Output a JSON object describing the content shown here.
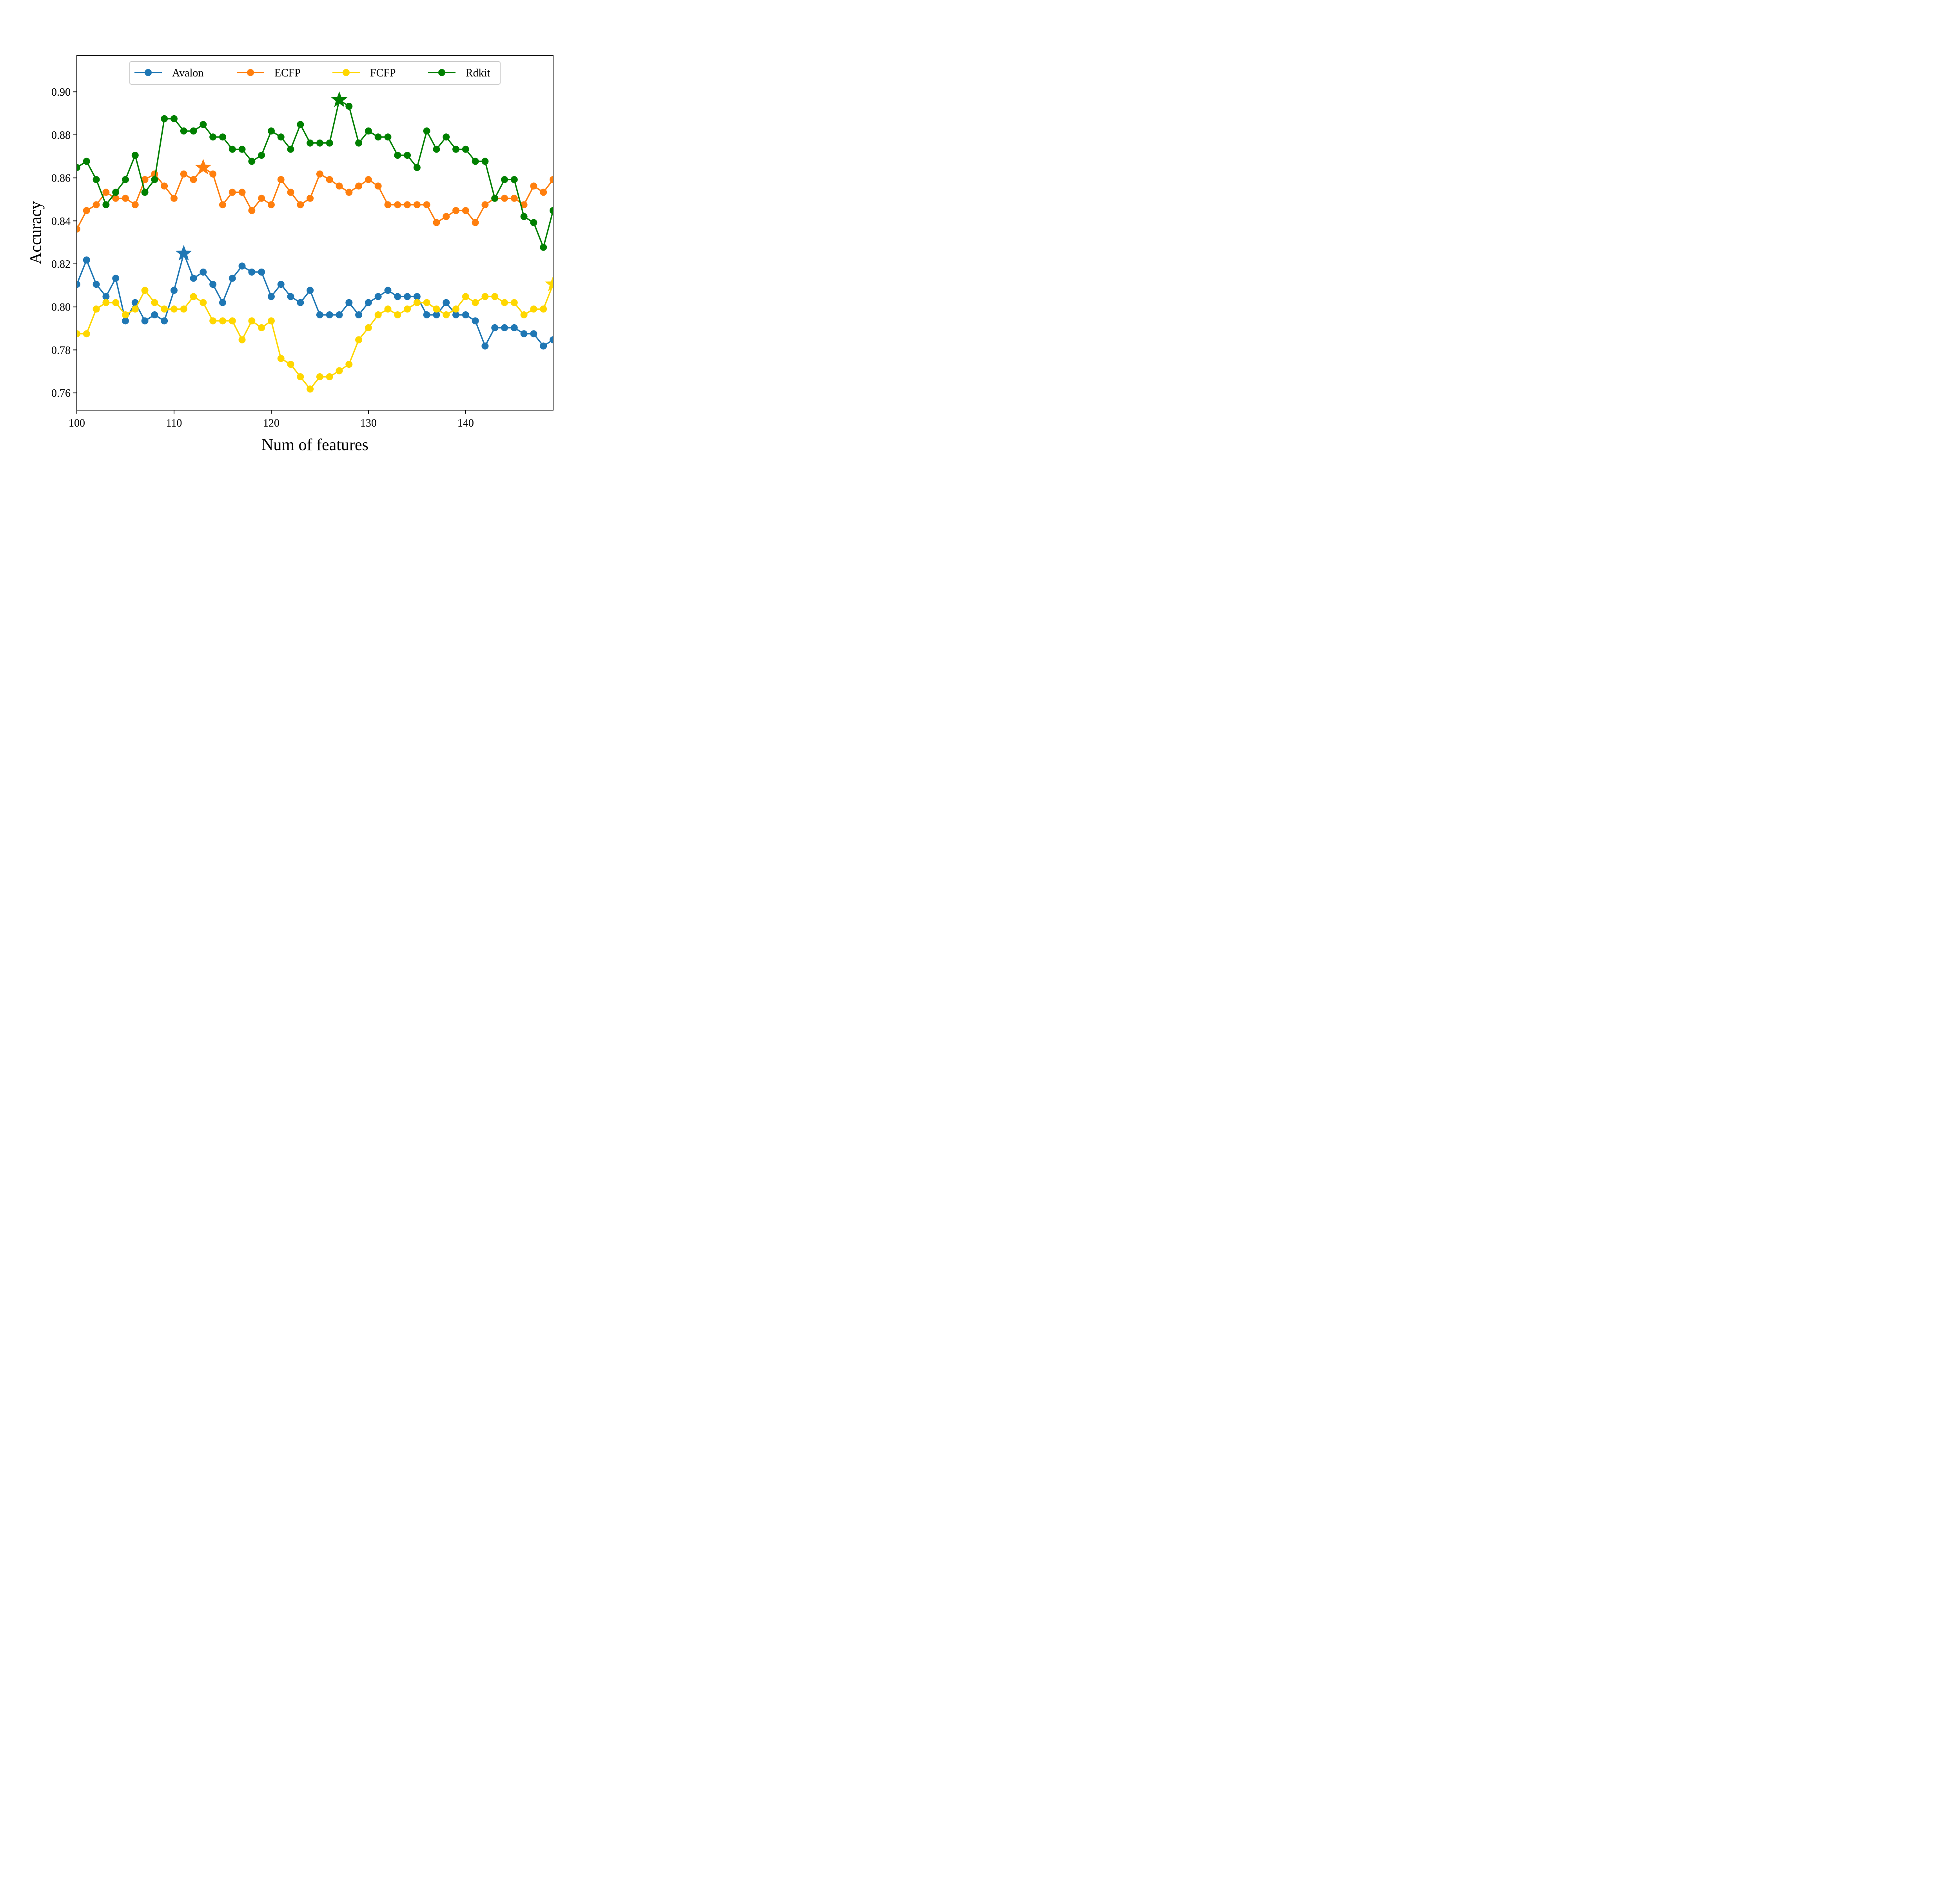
{
  "chart_data": {
    "type": "line",
    "title": "",
    "xlabel": "Num of features",
    "ylabel": "Accuracy",
    "xlim": [
      100,
      149
    ],
    "ylim": [
      0.752,
      0.917
    ],
    "xticks": [
      100,
      110,
      120,
      130,
      140
    ],
    "xtick_labels": [
      "100",
      "110",
      "120",
      "130",
      "140"
    ],
    "yticks": [
      0.76,
      0.78,
      0.8,
      0.82,
      0.84,
      0.86,
      0.88,
      0.9
    ],
    "ytick_labels": [
      "0.76",
      "0.78",
      "0.80",
      "0.82",
      "0.84",
      "0.86",
      "0.88",
      "0.90"
    ],
    "grid": false,
    "legend_position": "top-center",
    "x": [
      100,
      101,
      102,
      103,
      104,
      105,
      106,
      107,
      108,
      109,
      110,
      111,
      112,
      113,
      114,
      115,
      116,
      117,
      118,
      119,
      120,
      121,
      122,
      123,
      124,
      125,
      126,
      127,
      128,
      129,
      130,
      131,
      132,
      133,
      134,
      135,
      136,
      137,
      138,
      139,
      140,
      141,
      142,
      143,
      144,
      145,
      146,
      147,
      148,
      149
    ],
    "series": [
      {
        "name": "Avalon",
        "color": "#1f77b4",
        "values": [
          0.8105,
          0.8218,
          0.8105,
          0.8048,
          0.8133,
          0.7935,
          0.802,
          0.7935,
          0.7963,
          0.7935,
          0.8077,
          0.8248,
          0.8133,
          0.8162,
          0.8105,
          0.802,
          0.8133,
          0.819,
          0.8162,
          0.8162,
          0.8048,
          0.8105,
          0.8048,
          0.802,
          0.8077,
          0.7963,
          0.7963,
          0.7963,
          0.802,
          0.7963,
          0.802,
          0.8048,
          0.8077,
          0.8048,
          0.8048,
          0.8048,
          0.7963,
          0.7963,
          0.802,
          0.7963,
          0.7963,
          0.7935,
          0.7818,
          0.7903,
          0.7903,
          0.7903,
          0.7875,
          0.7875,
          0.7818,
          0.7847
        ],
        "best": {
          "x": 111,
          "y": 0.8248
        }
      },
      {
        "name": "ECFP",
        "color": "#ff7f0e",
        "values": [
          0.8362,
          0.8448,
          0.8475,
          0.8533,
          0.8505,
          0.8505,
          0.8475,
          0.8592,
          0.8618,
          0.8562,
          0.8505,
          0.8618,
          0.8592,
          0.8648,
          0.8618,
          0.8475,
          0.8533,
          0.8533,
          0.8448,
          0.8505,
          0.8475,
          0.8592,
          0.8533,
          0.8475,
          0.8505,
          0.8618,
          0.8592,
          0.8562,
          0.8533,
          0.8562,
          0.8592,
          0.8562,
          0.8475,
          0.8475,
          0.8475,
          0.8475,
          0.8475,
          0.8392,
          0.842,
          0.8448,
          0.8448,
          0.8392,
          0.8475,
          0.8505,
          0.8505,
          0.8505,
          0.8475,
          0.8562,
          0.8533,
          0.8592
        ],
        "best": {
          "x": 113,
          "y": 0.8648
        }
      },
      {
        "name": "FCFP",
        "color": "#ffd700",
        "values": [
          0.7875,
          0.7875,
          0.799,
          0.802,
          0.802,
          0.7963,
          0.799,
          0.8077,
          0.802,
          0.799,
          0.799,
          0.799,
          0.8048,
          0.802,
          0.7935,
          0.7935,
          0.7935,
          0.7847,
          0.7935,
          0.7903,
          0.7935,
          0.776,
          0.7733,
          0.7675,
          0.7618,
          0.7675,
          0.7675,
          0.7703,
          0.7733,
          0.7847,
          0.7903,
          0.7963,
          0.799,
          0.7963,
          0.799,
          0.802,
          0.802,
          0.799,
          0.7963,
          0.799,
          0.8048,
          0.802,
          0.8048,
          0.8048,
          0.802,
          0.802,
          0.7963,
          0.799,
          0.799,
          0.8105
        ],
        "best": {
          "x": 149,
          "y": 0.8105
        }
      },
      {
        "name": "Rdkit",
        "color": "#008000",
        "values": [
          0.8648,
          0.8677,
          0.8592,
          0.8475,
          0.8533,
          0.8592,
          0.8705,
          0.8533,
          0.8592,
          0.8875,
          0.8875,
          0.8818,
          0.8818,
          0.8848,
          0.879,
          0.879,
          0.8733,
          0.8733,
          0.8677,
          0.8705,
          0.8818,
          0.879,
          0.8733,
          0.8848,
          0.8762,
          0.8762,
          0.8762,
          0.8962,
          0.8933,
          0.8762,
          0.8818,
          0.879,
          0.879,
          0.8705,
          0.8705,
          0.8648,
          0.8818,
          0.8733,
          0.879,
          0.8733,
          0.8733,
          0.8677,
          0.8677,
          0.8505,
          0.8592,
          0.8592,
          0.842,
          0.8392,
          0.8277,
          0.8448
        ],
        "best": {
          "x": 127,
          "y": 0.8962
        }
      }
    ]
  }
}
